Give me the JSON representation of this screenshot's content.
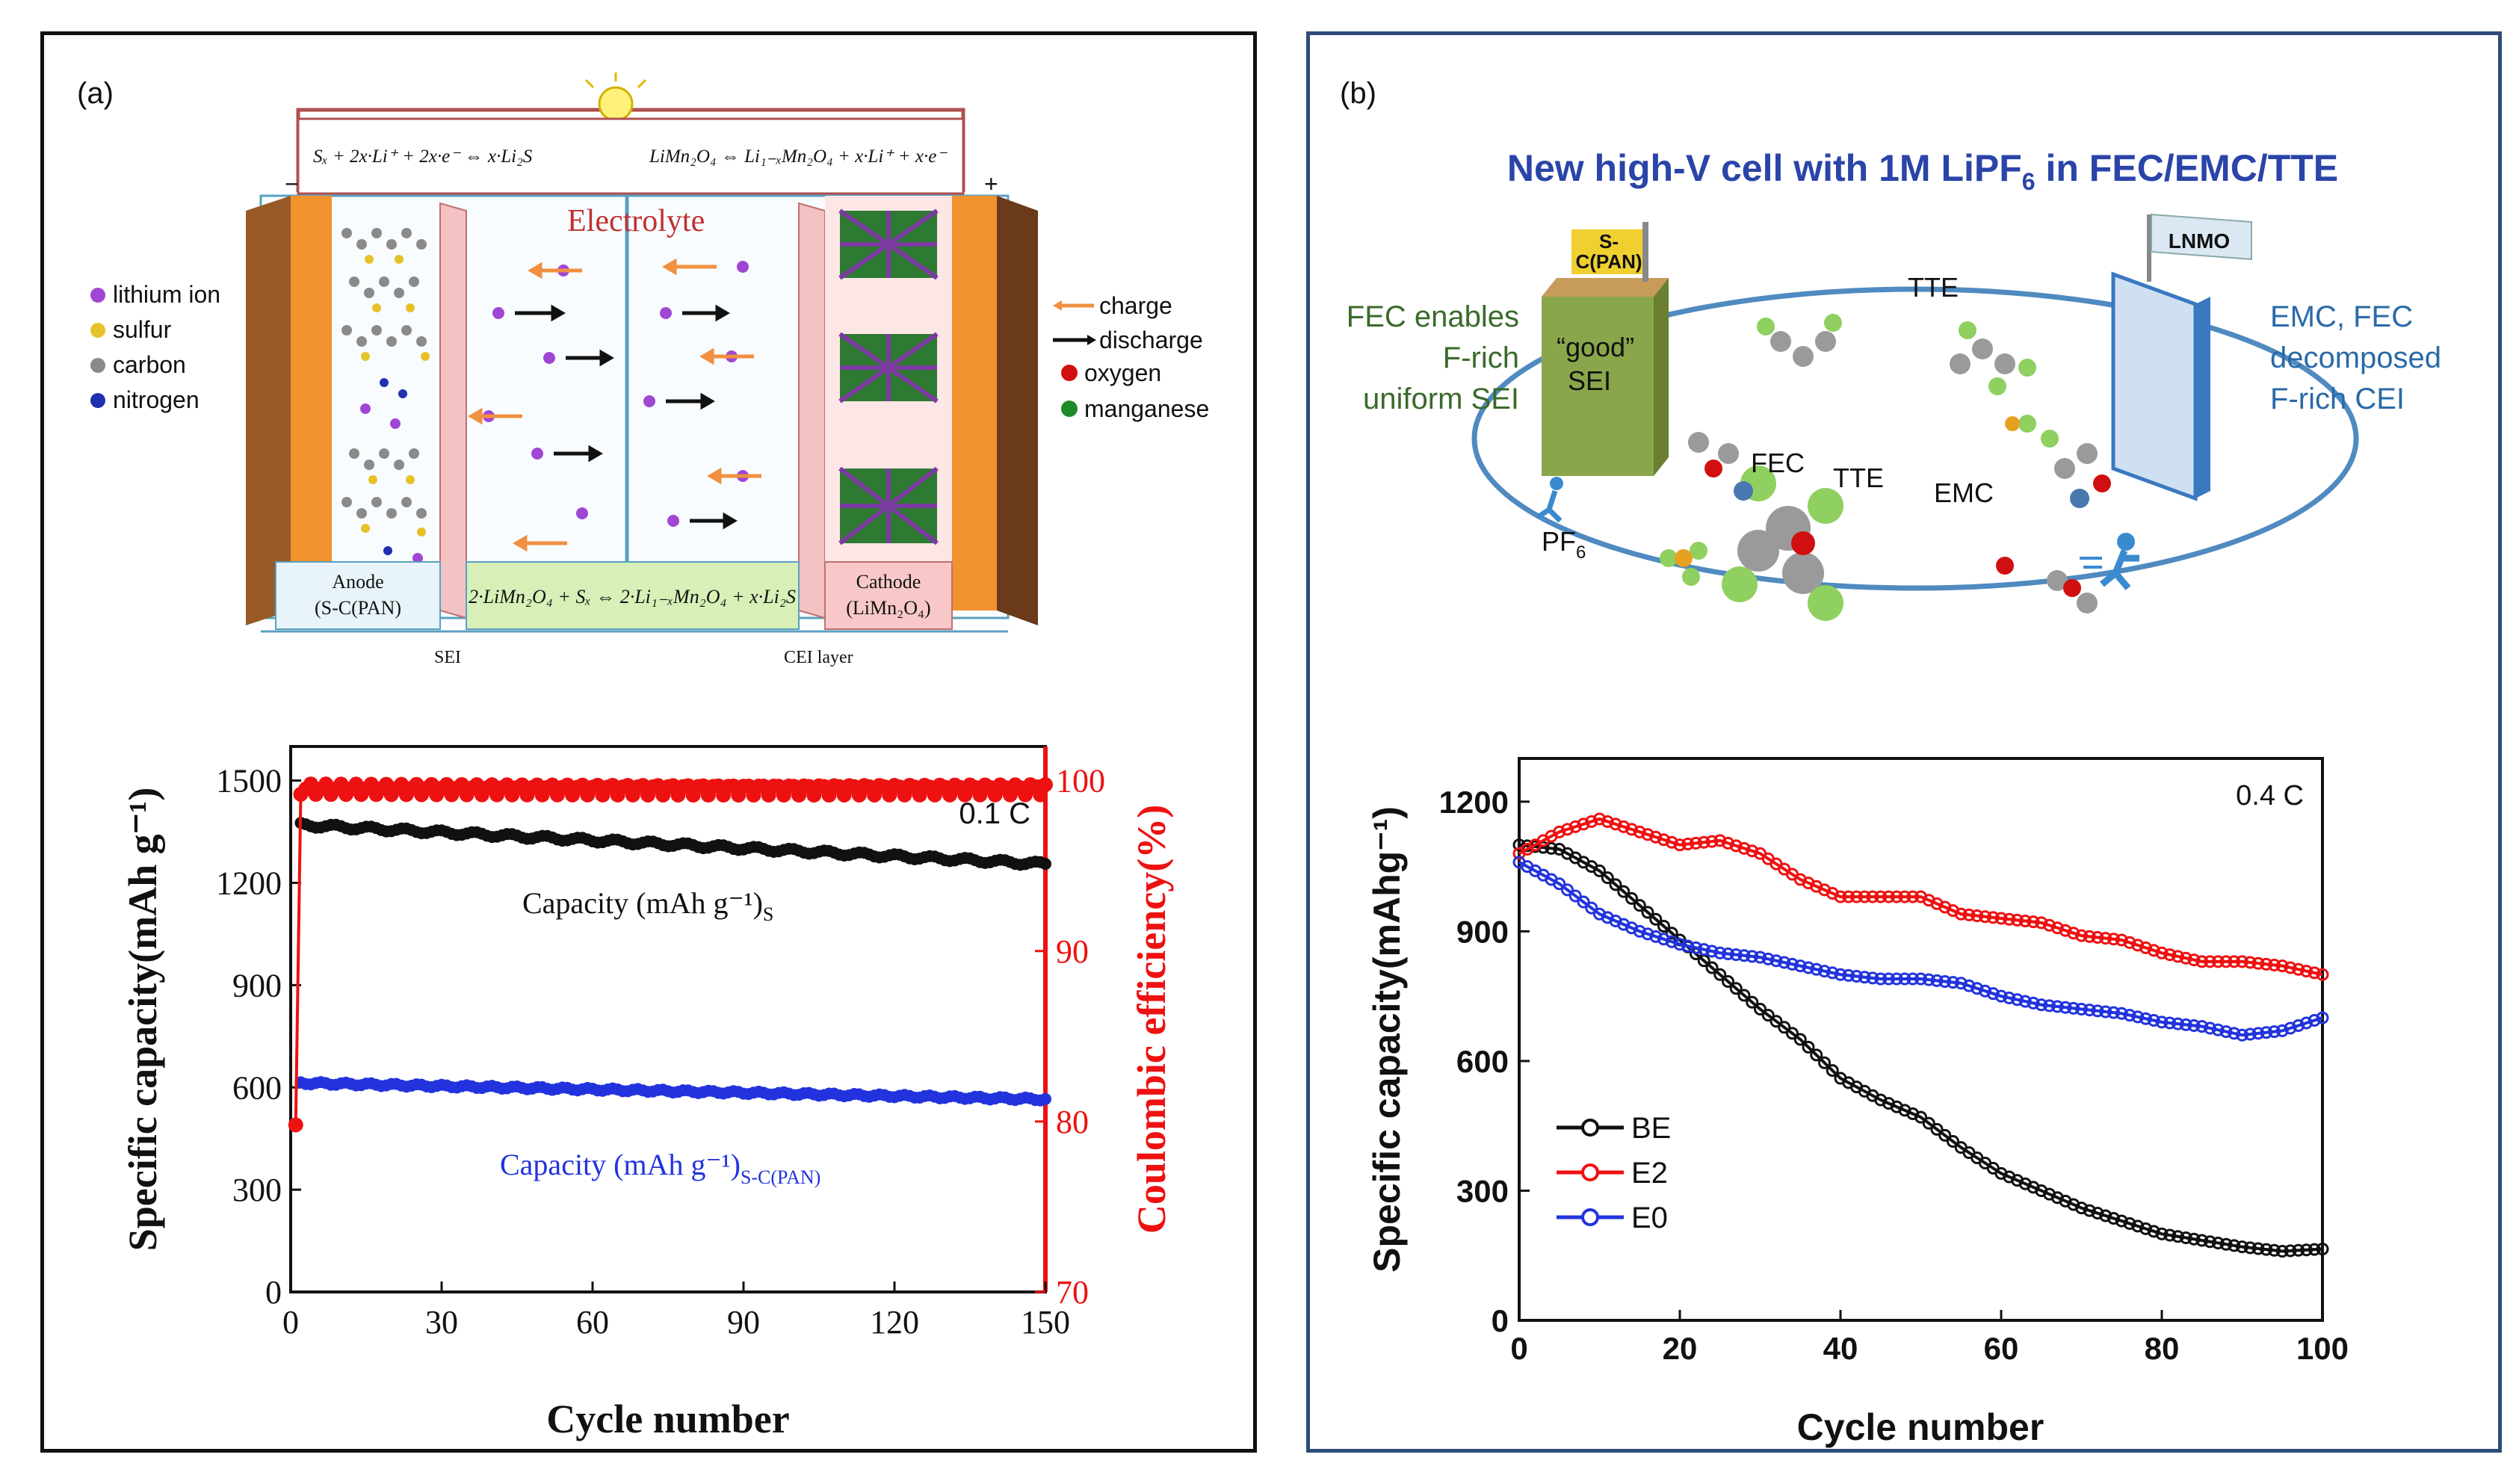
{
  "panel_a": {
    "label": "(a)",
    "schematic": {
      "eq_anode": "Sₓ + 2x·Li⁺ + 2x·e⁻ ⇔ x·Li₂S",
      "eq_cathode": "LiMn₂O₄ ⇔ Li₁₋ₓMn₂O₄ + x·Li⁺ + x·e⁻",
      "eq_charge": "charge",
      "eq_discharge": "discharge",
      "minus": "−",
      "plus": "+",
      "electrolyte": "Electrolyte",
      "legend": [
        "lithium ion",
        "sulfur",
        "carbon",
        "nitrogen"
      ],
      "legend_right": [
        "charge",
        "discharge",
        "oxygen",
        "manganese"
      ],
      "anode_label": "Anode",
      "anode_sub": "(S-C(PAN)",
      "overall_eq": "2·LiMn₂O₄ + Sₓ ⇔ 2·Li₁₋ₓMn₂O₄ + x·Li₂S",
      "cathode_label": "Cathode",
      "cathode_sub": "(LiMn₂O₄)",
      "sei": "SEI",
      "cei": "CEI layer",
      "colors": {
        "lithium": "#a046d4",
        "sulfur": "#e6c22a",
        "carbon": "#8a8a8a",
        "nitrogen": "#2030b0",
        "oxygen": "#d01010",
        "manganese": "#1f8a2a",
        "electrode": "#f0922e"
      }
    }
  },
  "panel_b": {
    "label": "(b)",
    "title": "New high-V cell with 1M LiPF",
    "title_sub": "6",
    "title_end": " in FEC/EMC/TTE",
    "sc_label_1": "S-",
    "sc_label_2": "C(PAN)",
    "lnmo": "LNMO",
    "good": "“good”",
    "sei": "SEI",
    "fec_left_1": "FEC enables",
    "fec_left_2": "F-rich",
    "fec_left_3": "uniform SEI",
    "right_1": "EMC, FEC",
    "right_2": "decomposed",
    "right_3": "F-rich CEI",
    "mol_tte_top": "TTE",
    "mol_fec": "FEC",
    "mol_tte": "TTE",
    "mol_emc": "EMC",
    "mol_pf": "PF",
    "mol_pf_sub": "6",
    "colors": {
      "title": "#2a44a8",
      "green_text": "#3a6a2a",
      "blue_text": "#2a6aa8"
    }
  },
  "chart_data": [
    {
      "type": "scatter",
      "title": "",
      "annotation": "0.1 C",
      "xlabel": "Cycle number",
      "ylabel": "Specific capacity(mAh g⁻¹)",
      "y2label": "Coulombic efficiency(%)",
      "xlim": [
        0,
        150
      ],
      "ylim": [
        0,
        1600
      ],
      "y2lim": [
        70,
        102
      ],
      "xticks": [
        0,
        30,
        60,
        90,
        120,
        150
      ],
      "yticks": [
        0,
        300,
        600,
        900,
        1200,
        1500
      ],
      "y2ticks": [
        70,
        80,
        90,
        100
      ],
      "series_labels": {
        "capacity_s": "Capacity (mAh g⁻¹)",
        "capacity_s_sub": "S",
        "capacity_scpan": "Capacity (mAh g⁻¹)",
        "capacity_scpan_sub": "S-C(PAN)"
      },
      "series": [
        {
          "name": "Capacity (mAh g⁻¹)S",
          "color": "#111111",
          "x_range": [
            2,
            150
          ],
          "y_start": 1370,
          "y_end": 1255,
          "axis": "left"
        },
        {
          "name": "Capacity (mAh g⁻¹)S-C(PAN)",
          "color": "#2233dd",
          "x_range": [
            2,
            150
          ],
          "y_start": 613,
          "y_end": 565,
          "axis": "left"
        },
        {
          "name": "Coulombic efficiency",
          "color": "#ee1111",
          "x_range": [
            1,
            150
          ],
          "first_value": 79.8,
          "steady": 99.5,
          "axis": "right"
        }
      ]
    },
    {
      "type": "line",
      "title": "",
      "annotation": "0.4 C",
      "xlabel": "Cycle number",
      "ylabel": "Specific capacity(mAhg⁻¹)",
      "xlim": [
        0,
        100
      ],
      "ylim": [
        0,
        1300
      ],
      "xticks": [
        0,
        20,
        40,
        60,
        80,
        100
      ],
      "yticks": [
        0,
        300,
        600,
        900,
        1200
      ],
      "legend_position": "left",
      "series": [
        {
          "name": "BE",
          "color": "#111111",
          "x": [
            0,
            5,
            10,
            15,
            20,
            25,
            30,
            35,
            40,
            45,
            50,
            55,
            60,
            65,
            70,
            75,
            80,
            85,
            90,
            95,
            100
          ],
          "y": [
            1100,
            1090,
            1040,
            960,
            880,
            800,
            720,
            650,
            560,
            510,
            470,
            400,
            340,
            300,
            260,
            230,
            200,
            185,
            170,
            160,
            165
          ]
        },
        {
          "name": "E2",
          "color": "#ee1111",
          "x": [
            0,
            5,
            10,
            15,
            20,
            25,
            30,
            35,
            40,
            45,
            50,
            55,
            60,
            65,
            70,
            75,
            80,
            85,
            90,
            95,
            100
          ],
          "y": [
            1080,
            1130,
            1160,
            1130,
            1100,
            1110,
            1080,
            1020,
            980,
            980,
            980,
            940,
            930,
            920,
            890,
            880,
            850,
            830,
            830,
            820,
            800
          ]
        },
        {
          "name": "E0",
          "color": "#2233dd",
          "x": [
            0,
            5,
            10,
            15,
            20,
            25,
            30,
            35,
            40,
            45,
            50,
            55,
            60,
            65,
            70,
            75,
            80,
            85,
            90,
            95,
            100
          ],
          "y": [
            1060,
            1010,
            940,
            900,
            870,
            850,
            840,
            820,
            800,
            790,
            790,
            780,
            750,
            730,
            720,
            710,
            690,
            680,
            660,
            670,
            700
          ]
        }
      ]
    }
  ]
}
